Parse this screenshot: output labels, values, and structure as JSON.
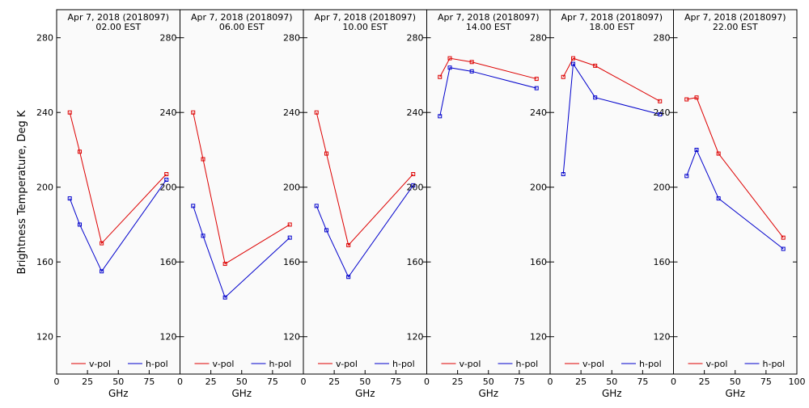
{
  "chart_data": {
    "type": "line",
    "ylabel": "Brightness Temperature, Deg K",
    "xlabel": "GHz",
    "xlim": [
      0,
      100
    ],
    "ylim": [
      100,
      295
    ],
    "yticks": [
      120,
      160,
      200,
      240,
      280
    ],
    "xticks": [
      0,
      25,
      50,
      75
    ],
    "xtick_labels": [
      "0",
      "25",
      "50",
      "75"
    ],
    "xtick_labels_last": [
      "0",
      "25",
      "50",
      "75",
      "100"
    ],
    "colors": {
      "v-pol": "#dd0000",
      "h-pol": "#0000cc"
    },
    "panels": [
      {
        "title_line1": "Apr  7, 2018 (2018097)",
        "title_line2": "02.00 EST",
        "series": [
          {
            "name": "v-pol",
            "x": [
              10.65,
              18.7,
              36.5,
              89.0
            ],
            "y": [
              240,
              219,
              170,
              207
            ]
          },
          {
            "name": "h-pol",
            "x": [
              10.65,
              18.7,
              36.5,
              89.0
            ],
            "y": [
              194,
              180,
              155,
              204
            ]
          }
        ]
      },
      {
        "title_line1": "Apr  7, 2018 (2018097)",
        "title_line2": "06.00 EST",
        "series": [
          {
            "name": "v-pol",
            "x": [
              10.65,
              18.7,
              36.5,
              89.0
            ],
            "y": [
              240,
              215,
              159,
              180
            ]
          },
          {
            "name": "h-pol",
            "x": [
              10.65,
              18.7,
              36.5,
              89.0
            ],
            "y": [
              190,
              174,
              141,
              173
            ]
          }
        ]
      },
      {
        "title_line1": "Apr  7, 2018 (2018097)",
        "title_line2": "10.00 EST",
        "series": [
          {
            "name": "v-pol",
            "x": [
              10.65,
              18.7,
              36.5,
              89.0
            ],
            "y": [
              240,
              218,
              169,
              207
            ]
          },
          {
            "name": "h-pol",
            "x": [
              10.65,
              18.7,
              36.5,
              89.0
            ],
            "y": [
              190,
              177,
              152,
              201
            ]
          }
        ]
      },
      {
        "title_line1": "Apr  7, 2018 (2018097)",
        "title_line2": "14.00 EST",
        "series": [
          {
            "name": "v-pol",
            "x": [
              10.65,
              18.7,
              36.5,
              89.0
            ],
            "y": [
              259,
              269,
              267,
              258
            ]
          },
          {
            "name": "h-pol",
            "x": [
              10.65,
              18.7,
              36.5,
              89.0
            ],
            "y": [
              238,
              264,
              262,
              253
            ]
          }
        ]
      },
      {
        "title_line1": "Apr  7, 2018 (2018097)",
        "title_line2": "18.00 EST",
        "series": [
          {
            "name": "v-pol",
            "x": [
              10.65,
              18.7,
              36.5,
              89.0
            ],
            "y": [
              259,
              269,
              265,
              246
            ]
          },
          {
            "name": "h-pol",
            "x": [
              10.65,
              18.7,
              36.5,
              89.0
            ],
            "y": [
              207,
              266,
              248,
              239
            ]
          }
        ]
      },
      {
        "title_line1": "Apr  7, 2018 (2018097)",
        "title_line2": "22.00 EST",
        "series": [
          {
            "name": "v-pol",
            "x": [
              10.65,
              18.7,
              36.5,
              89.0
            ],
            "y": [
              247,
              248,
              218,
              173
            ]
          },
          {
            "name": "h-pol",
            "x": [
              10.65,
              18.7,
              36.5,
              89.0
            ],
            "y": [
              206,
              220,
              194,
              167
            ]
          }
        ]
      }
    ],
    "legend": {
      "placement": "bottom",
      "entries": [
        "v-pol",
        "h-pol"
      ]
    },
    "grid": false
  }
}
